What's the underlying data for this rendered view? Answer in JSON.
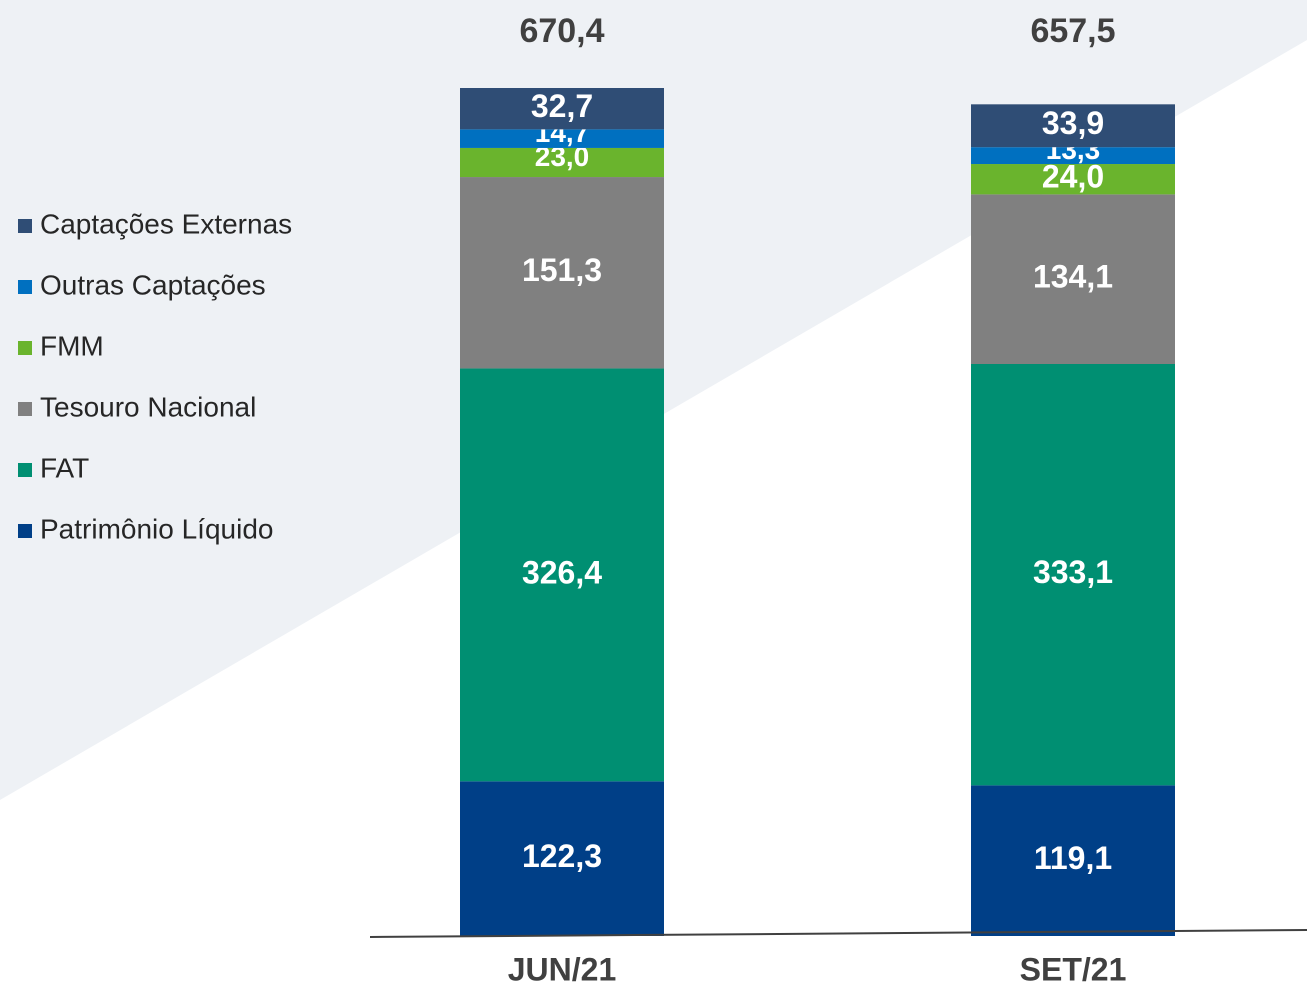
{
  "chart_data": {
    "type": "stacked_bar",
    "categories": [
      "JUN/21",
      "SET/21"
    ],
    "totals": [
      670.4,
      657.5
    ],
    "total_labels": [
      "670,4",
      "657,5"
    ],
    "series": [
      {
        "name": "Patrimônio Líquido",
        "color": "#003f87",
        "values": [
          122.3,
          119.1
        ],
        "value_labels": [
          "122,3",
          "119,1"
        ]
      },
      {
        "name": "FAT",
        "color": "#008f72",
        "values": [
          326.4,
          333.1
        ],
        "value_labels": [
          "326,4",
          "333,1"
        ]
      },
      {
        "name": "Tesouro Nacional",
        "color": "#808080",
        "values": [
          151.3,
          134.1
        ],
        "value_labels": [
          "151,3",
          "134,1"
        ]
      },
      {
        "name": "FMM",
        "color": "#6ab42d",
        "values": [
          23.0,
          24.0
        ],
        "value_labels": [
          "23,0",
          "24,0"
        ]
      },
      {
        "name": "Outras Captações",
        "color": "#0070c0",
        "values": [
          14.7,
          13.3
        ],
        "value_labels": [
          "14,7",
          "13,3"
        ]
      },
      {
        "name": "Captações Externas",
        "color": "#2f4d75",
        "values": [
          32.7,
          33.9
        ],
        "value_labels": [
          "32,7",
          "33,9"
        ]
      }
    ]
  }
}
